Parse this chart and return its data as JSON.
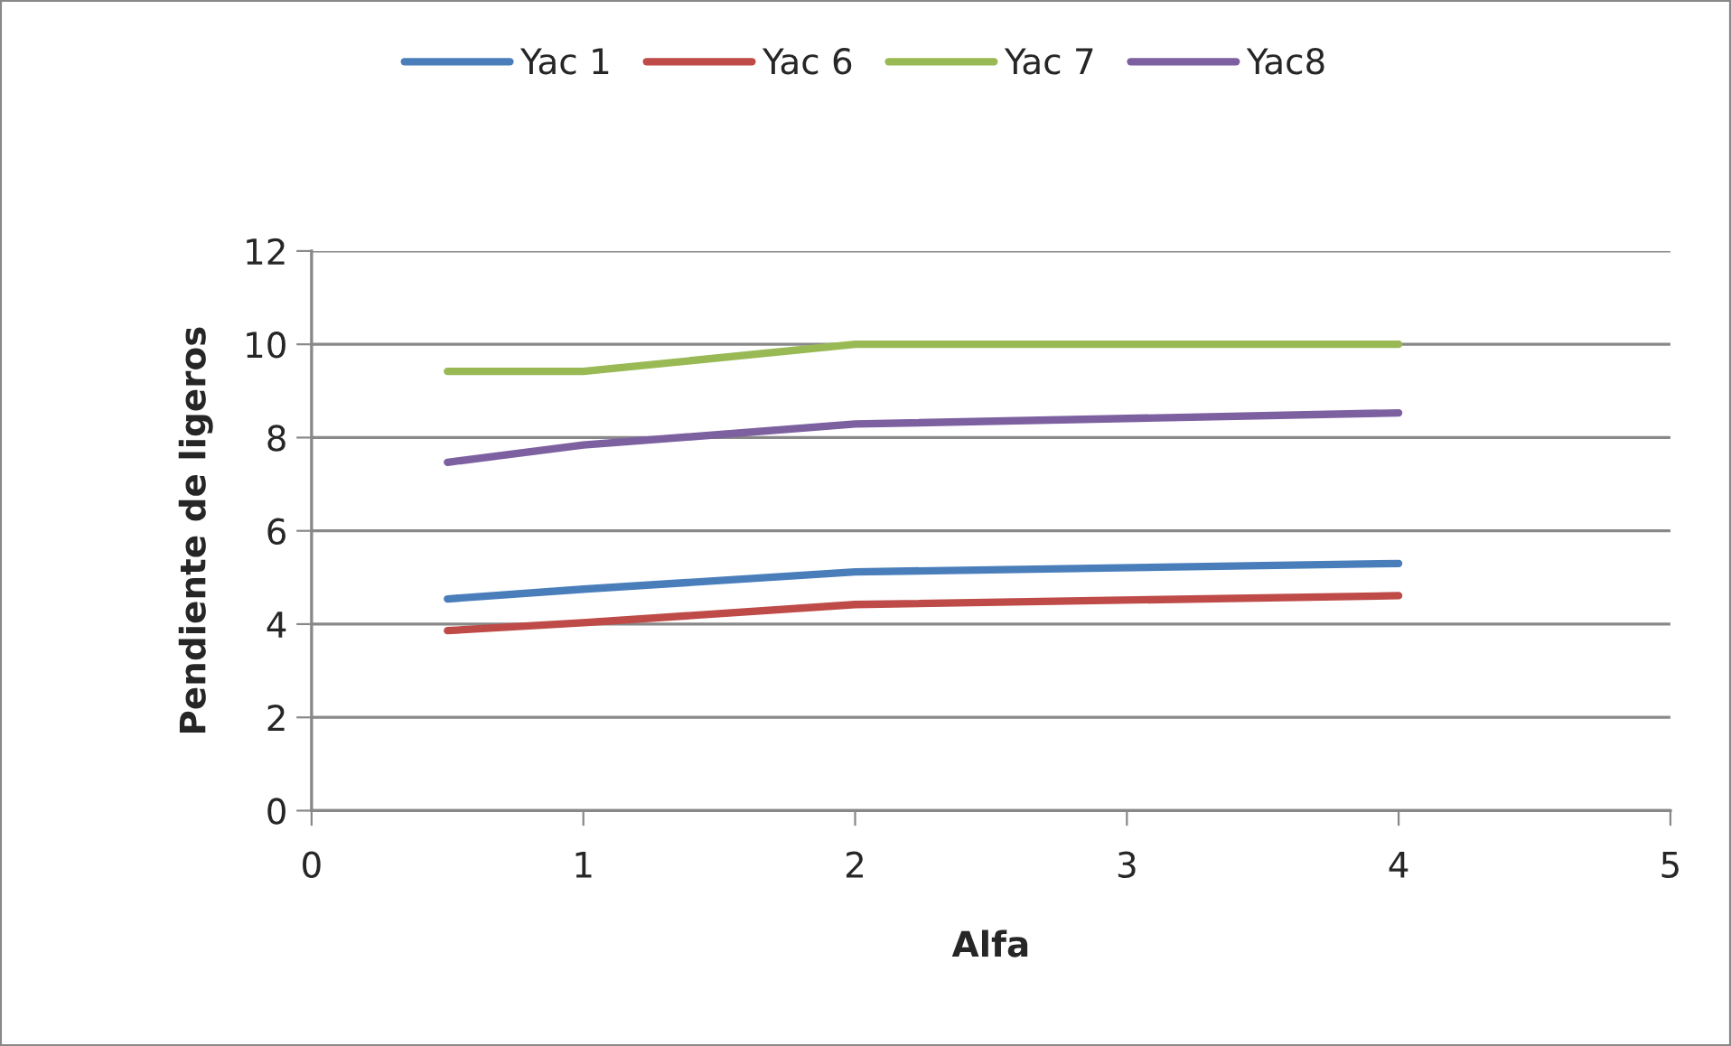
{
  "chart_data": {
    "type": "line",
    "xlabel": "Alfa",
    "ylabel": "Pendiente de ligeros",
    "x": [
      0.5,
      1,
      2,
      4
    ],
    "series": [
      {
        "name": "Yac 1",
        "color": "#4a7ebb",
        "values": [
          4.54,
          4.75,
          5.12,
          5.3
        ]
      },
      {
        "name": "Yac 6",
        "color": "#be4b48",
        "values": [
          3.86,
          4.03,
          4.42,
          4.61
        ]
      },
      {
        "name": "Yac 7",
        "color": "#98b954",
        "values": [
          9.42,
          9.42,
          10,
          10
        ]
      },
      {
        "name": "Yac8",
        "color": "#7d60a0",
        "values": [
          7.47,
          7.84,
          8.29,
          8.53
        ]
      }
    ],
    "xlim": [
      0,
      5
    ],
    "xticks": [
      0,
      1,
      2,
      3,
      4,
      5
    ],
    "ylim": [
      0,
      12
    ],
    "yticks": [
      0,
      2,
      4,
      6,
      8,
      10,
      12
    ],
    "grid": "y",
    "legend": "top",
    "marker": "none",
    "line_style": "solid"
  }
}
